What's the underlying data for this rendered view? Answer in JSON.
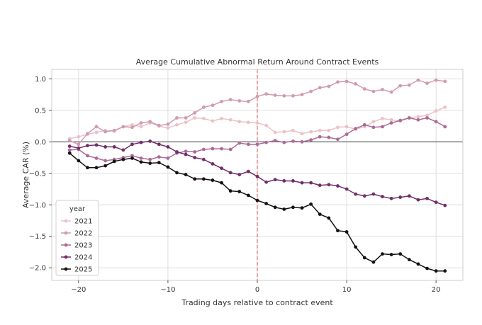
{
  "chart_data": {
    "type": "line",
    "title": "Average Cumulative Abnormal Return Around Contract Events",
    "xlabel": "Trading days relative to contract event",
    "ylabel": "Average CAR (%)",
    "xlim": [
      -23,
      23
    ],
    "ylim": [
      -2.2,
      1.15
    ],
    "xticks": [
      -20,
      -10,
      0,
      10,
      20
    ],
    "xtick_labels": [
      "−20",
      "−10",
      "0",
      "10",
      "20"
    ],
    "yticks": [
      1.0,
      0.5,
      0.0,
      -0.5,
      -1.0,
      -1.5,
      -2.0
    ],
    "ytick_labels": [
      "1.0",
      "0.5",
      "0.0",
      "−0.5",
      "−1.0",
      "−1.5",
      "−2.0"
    ],
    "grid": true,
    "reference_lines": [
      {
        "axis": "y",
        "value": 0,
        "style": "solid",
        "color": "#555555"
      },
      {
        "axis": "x",
        "value": 0,
        "style": "dashed",
        "color": "#d9534f"
      }
    ],
    "legend": {
      "title": "year",
      "position": "bottom-left"
    },
    "x": [
      -21,
      -20,
      -19,
      -18,
      -17,
      -16,
      -15,
      -14,
      -13,
      -12,
      -11,
      -10,
      -9,
      -8,
      -7,
      -6,
      -5,
      -4,
      -3,
      -2,
      -1,
      0,
      1,
      2,
      3,
      4,
      5,
      6,
      7,
      8,
      9,
      10,
      11,
      12,
      13,
      14,
      15,
      16,
      17,
      18,
      19,
      20,
      21
    ],
    "series": [
      {
        "name": "2021",
        "color": "#ebc2c7",
        "values": [
          0.05,
          0.08,
          0.12,
          0.15,
          0.18,
          0.17,
          0.24,
          0.27,
          0.24,
          0.3,
          0.25,
          0.22,
          0.27,
          0.31,
          0.38,
          0.37,
          0.33,
          0.37,
          0.35,
          0.32,
          0.31,
          0.3,
          0.26,
          0.15,
          0.16,
          0.18,
          0.13,
          0.16,
          0.18,
          0.18,
          0.23,
          0.24,
          0.2,
          0.24,
          0.32,
          0.37,
          0.35,
          0.33,
          0.38,
          0.4,
          0.42,
          0.49,
          0.55
        ]
      },
      {
        "name": "2022",
        "color": "#d09bb0",
        "values": [
          0.02,
          -0.04,
          0.13,
          0.24,
          0.16,
          0.18,
          0.24,
          0.23,
          0.3,
          0.32,
          0.26,
          0.28,
          0.38,
          0.38,
          0.46,
          0.55,
          0.58,
          0.64,
          0.67,
          0.65,
          0.64,
          0.72,
          0.76,
          0.74,
          0.73,
          0.73,
          0.75,
          0.8,
          0.86,
          0.88,
          0.95,
          0.96,
          0.92,
          0.84,
          0.8,
          0.83,
          0.79,
          0.89,
          0.9,
          0.98,
          0.93,
          0.98,
          0.96
        ]
      },
      {
        "name": "2023",
        "color": "#ac6a97",
        "values": [
          -0.13,
          -0.12,
          -0.22,
          -0.26,
          -0.3,
          -0.28,
          -0.25,
          -0.22,
          -0.26,
          -0.28,
          -0.24,
          -0.26,
          -0.18,
          -0.15,
          -0.16,
          -0.12,
          -0.11,
          -0.11,
          -0.12,
          -0.02,
          -0.04,
          -0.04,
          -0.01,
          0.02,
          -0.01,
          0.01,
          0.0,
          0.03,
          0.08,
          0.07,
          0.04,
          0.12,
          0.21,
          0.27,
          0.23,
          0.24,
          0.3,
          0.34,
          0.38,
          0.35,
          0.38,
          0.32,
          0.24
        ]
      },
      {
        "name": "2024",
        "color": "#712d6c",
        "values": [
          -0.07,
          -0.1,
          -0.06,
          -0.05,
          -0.08,
          -0.08,
          -0.13,
          -0.04,
          -0.01,
          0.01,
          -0.04,
          -0.08,
          -0.16,
          -0.2,
          -0.25,
          -0.28,
          -0.35,
          -0.42,
          -0.49,
          -0.52,
          -0.47,
          -0.55,
          -0.64,
          -0.6,
          -0.62,
          -0.62,
          -0.65,
          -0.65,
          -0.69,
          -0.68,
          -0.7,
          -0.75,
          -0.83,
          -0.86,
          -0.83,
          -0.87,
          -0.9,
          -0.88,
          -0.86,
          -0.92,
          -0.9,
          -0.96,
          -1.01
        ]
      },
      {
        "name": "2025",
        "color": "#161014",
        "values": [
          -0.18,
          -0.3,
          -0.41,
          -0.41,
          -0.38,
          -0.31,
          -0.28,
          -0.26,
          -0.32,
          -0.34,
          -0.33,
          -0.4,
          -0.49,
          -0.52,
          -0.59,
          -0.59,
          -0.61,
          -0.65,
          -0.78,
          -0.79,
          -0.85,
          -0.93,
          -0.98,
          -1.04,
          -1.07,
          -1.04,
          -1.05,
          -0.99,
          -1.15,
          -1.21,
          -1.41,
          -1.43,
          -1.67,
          -1.84,
          -1.91,
          -1.78,
          -1.79,
          -1.78,
          -1.87,
          -1.94,
          -2.01,
          -2.05,
          -2.05
        ]
      }
    ]
  }
}
